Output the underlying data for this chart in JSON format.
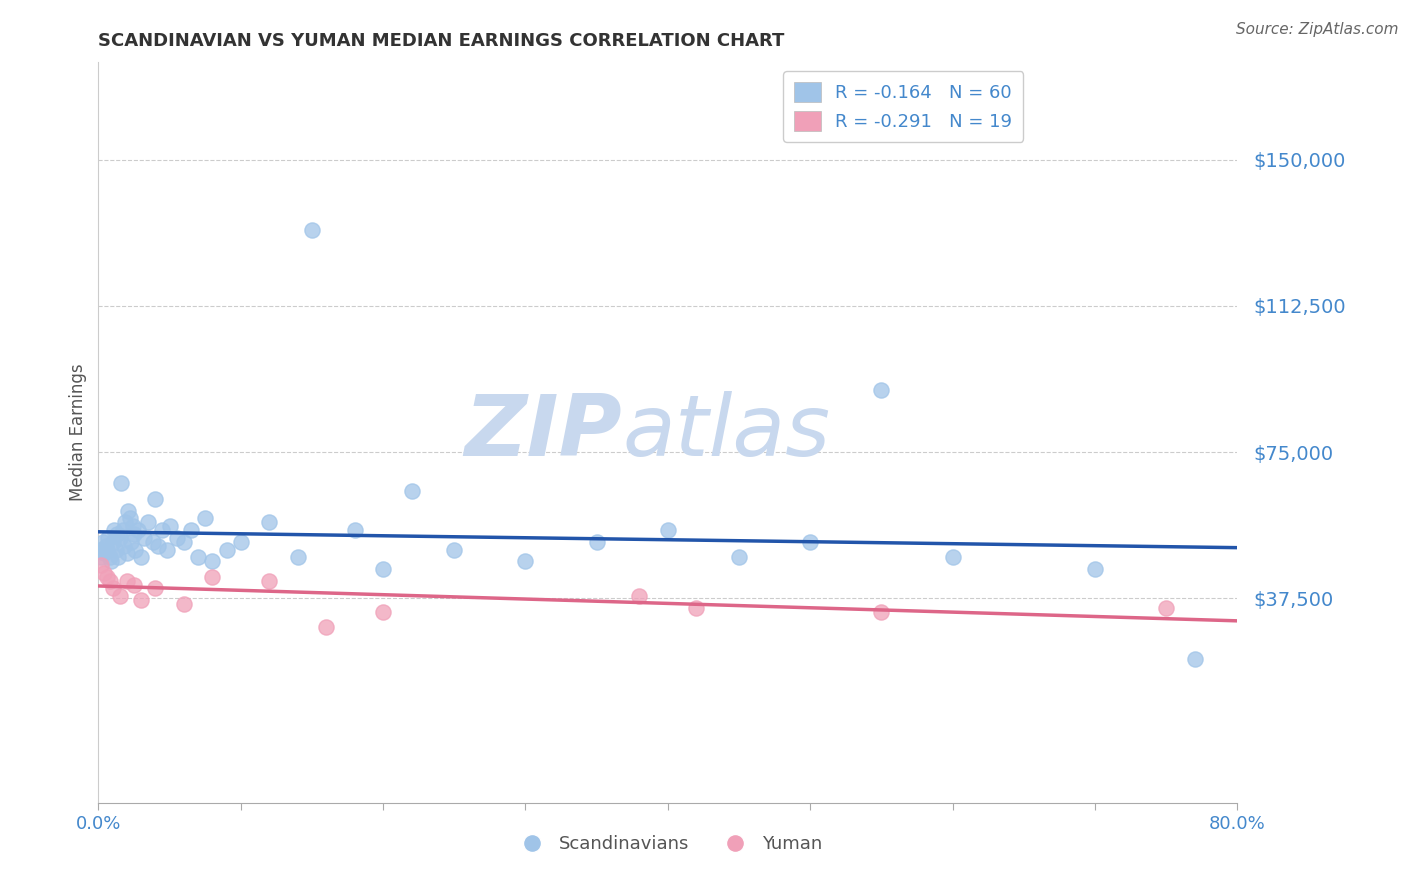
{
  "title": "SCANDINAVIAN VS YUMAN MEDIAN EARNINGS CORRELATION CHART",
  "source": "Source: ZipAtlas.com",
  "ylabel": "Median Earnings",
  "xlim": [
    0.0,
    0.8
  ],
  "ylim": [
    -15000,
    175000
  ],
  "ytick_vals": [
    0,
    37500,
    75000,
    112500,
    150000
  ],
  "ytick_labels": [
    "",
    "$37,500",
    "$75,000",
    "$112,500",
    "$150,000"
  ],
  "xtick_positions": [
    0.0,
    0.1,
    0.2,
    0.3,
    0.4,
    0.5,
    0.6,
    0.7,
    0.8
  ],
  "xtick_labels": [
    "0.0%",
    "",
    "",
    "",
    "",
    "",
    "",
    "",
    "80.0%"
  ],
  "blue_color": "#A0C4E8",
  "pink_color": "#F0A0B8",
  "blue_line_color": "#2255AA",
  "pink_line_color": "#DD6688",
  "R_blue": -0.164,
  "N_blue": 60,
  "R_pink": -0.291,
  "N_pink": 19,
  "blue_x": [
    0.001,
    0.002,
    0.003,
    0.004,
    0.005,
    0.006,
    0.007,
    0.008,
    0.009,
    0.01,
    0.011,
    0.012,
    0.013,
    0.014,
    0.015,
    0.016,
    0.017,
    0.018,
    0.019,
    0.02,
    0.021,
    0.022,
    0.023,
    0.024,
    0.025,
    0.026,
    0.028,
    0.03,
    0.032,
    0.035,
    0.038,
    0.04,
    0.042,
    0.045,
    0.048,
    0.05,
    0.055,
    0.06,
    0.065,
    0.07,
    0.075,
    0.08,
    0.09,
    0.1,
    0.12,
    0.14,
    0.15,
    0.18,
    0.2,
    0.22,
    0.25,
    0.3,
    0.35,
    0.4,
    0.45,
    0.5,
    0.55,
    0.6,
    0.7,
    0.77
  ],
  "blue_y": [
    50000,
    48000,
    52000,
    49000,
    51000,
    50000,
    53000,
    48000,
    47000,
    52000,
    55000,
    50000,
    54000,
    48000,
    53000,
    67000,
    55000,
    51000,
    57000,
    49000,
    60000,
    58000,
    52000,
    56000,
    54000,
    50000,
    55000,
    48000,
    53000,
    57000,
    52000,
    63000,
    51000,
    55000,
    50000,
    56000,
    53000,
    52000,
    55000,
    48000,
    58000,
    47000,
    50000,
    52000,
    57000,
    48000,
    132000,
    55000,
    45000,
    65000,
    50000,
    47000,
    52000,
    55000,
    48000,
    52000,
    91000,
    48000,
    45000,
    22000
  ],
  "pink_x": [
    0.002,
    0.004,
    0.006,
    0.008,
    0.01,
    0.015,
    0.02,
    0.025,
    0.03,
    0.04,
    0.06,
    0.08,
    0.12,
    0.16,
    0.2,
    0.38,
    0.42,
    0.55,
    0.75
  ],
  "pink_y": [
    46000,
    44000,
    43000,
    42000,
    40000,
    38000,
    42000,
    41000,
    37000,
    40000,
    36000,
    43000,
    42000,
    30000,
    34000,
    38000,
    35000,
    34000,
    35000
  ],
  "watermark_zip": "ZIP",
  "watermark_atlas": "atlas",
  "watermark_color": "#C8D8EE",
  "background_color": "#FFFFFF",
  "grid_color": "#CCCCCC",
  "tick_color": "#4488CC",
  "title_color": "#333333",
  "legend_text_color": "#333333"
}
